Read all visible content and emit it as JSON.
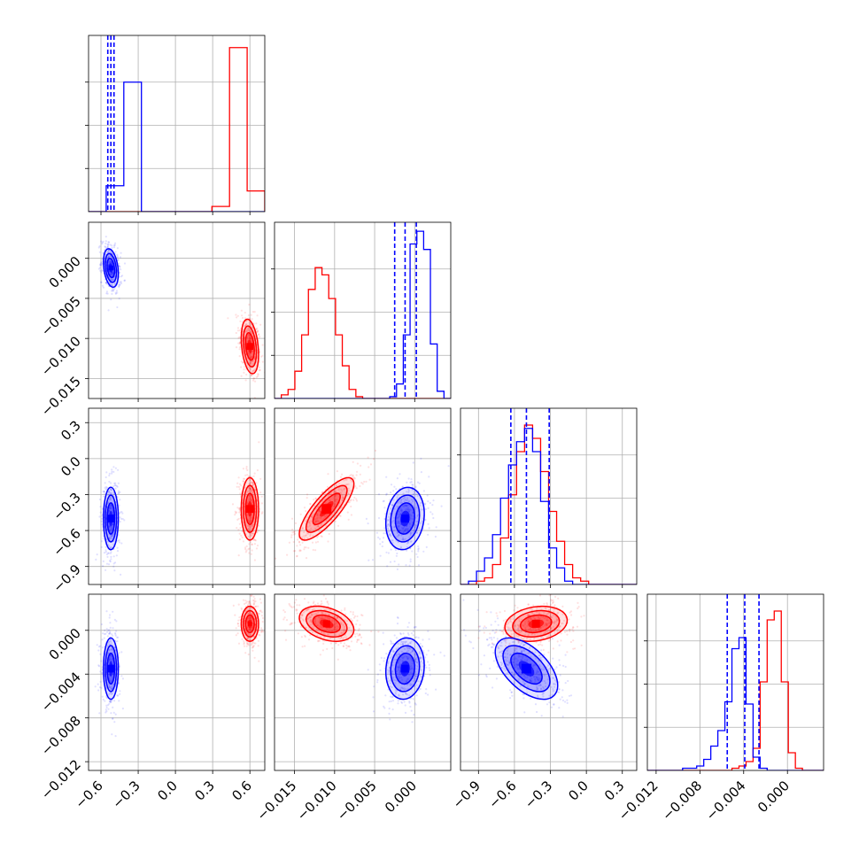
{
  "chart_data": {
    "type": "corner",
    "grid": true,
    "colors": {
      "blue": "#0000ff",
      "red": "#ff0000",
      "grid": "#b0b0b0"
    },
    "parameters": [
      {
        "range": [
          -0.7,
          0.72
        ],
        "ticks": [
          -0.6,
          -0.3,
          0.0,
          0.3,
          0.6
        ],
        "tick_labels": [
          "−0.6",
          "−0.3",
          "0.0",
          "0.3",
          "0.6"
        ]
      },
      {
        "range": [
          -0.0175,
          0.0045
        ],
        "ticks": [
          -0.015,
          -0.01,
          -0.005,
          0.0
        ],
        "tick_labels": [
          "−0.015",
          "−0.010",
          "−0.005",
          "0.000"
        ]
      },
      {
        "range": [
          -1.05,
          0.42
        ],
        "ticks": [
          -0.9,
          -0.6,
          -0.3,
          0.0,
          0.3
        ],
        "tick_labels": [
          "−0.9",
          "−0.6",
          "−0.3",
          "0.0",
          "0.3"
        ]
      },
      {
        "range": [
          -0.0128,
          0.0033
        ],
        "ticks": [
          -0.012,
          -0.008,
          -0.004,
          0.0
        ],
        "tick_labels": [
          "−0.012",
          "−0.008",
          "−0.004",
          "0.000"
        ]
      }
    ],
    "blue": {
      "means": [
        -0.52,
        -0.0012,
        -0.5,
        -0.0035
      ],
      "stds": [
        0.03,
        0.0012,
        0.13,
        0.0014
      ],
      "quantiles": [
        [
          -0.545,
          -0.52,
          -0.495
        ],
        [
          -0.0025,
          -0.0012,
          0.0002
        ],
        [
          -0.63,
          -0.5,
          -0.31
        ],
        [
          -0.0055,
          -0.0039,
          -0.0026
        ]
      ]
    },
    "red": {
      "means": [
        0.6,
        -0.011,
        -0.42,
        0.0006
      ],
      "stds": [
        0.035,
        0.0017,
        0.13,
        0.0008
      ]
    },
    "histograms": [
      {
        "blue_counts": [
          0,
          15,
          75,
          0,
          0,
          0,
          0,
          0,
          0,
          0
        ],
        "red_counts": [
          0,
          0,
          0,
          0,
          0,
          0,
          0,
          3,
          95,
          12
        ],
        "ymax": 100
      },
      {
        "blue_counts": [
          0,
          0,
          0,
          0,
          0,
          0,
          0,
          0,
          0,
          0,
          0,
          0,
          0,
          0,
          0,
          0,
          0,
          1,
          8,
          35,
          85,
          92,
          82,
          30,
          4,
          0
        ],
        "red_counts": [
          0,
          2,
          5,
          15,
          35,
          60,
          72,
          68,
          55,
          35,
          18,
          5,
          1,
          0,
          0,
          0,
          0,
          0,
          0,
          0,
          0,
          0,
          0,
          0,
          0,
          0
        ],
        "ymax": 95
      },
      {
        "blue_counts": [
          0,
          1,
          4,
          8,
          15,
          26,
          36,
          43,
          47,
          40,
          25,
          11,
          5,
          1,
          0,
          0,
          0,
          0,
          0,
          0,
          0,
          0
        ],
        "red_counts": [
          0,
          0,
          1,
          2,
          6,
          14,
          27,
          40,
          48,
          44,
          34,
          22,
          13,
          6,
          2,
          1,
          0,
          0,
          0,
          0,
          0,
          0
        ],
        "ymax": 52
      },
      {
        "blue_counts": [
          0,
          0,
          0,
          0,
          0,
          1,
          1,
          2,
          5,
          11,
          18,
          31,
          55,
          60,
          30,
          6,
          1,
          0,
          0,
          0,
          0,
          0,
          0,
          0,
          0
        ],
        "red_counts": [
          0,
          0,
          0,
          0,
          0,
          0,
          0,
          0,
          0,
          0,
          0,
          0,
          1,
          2,
          4,
          10,
          40,
          68,
          72,
          40,
          8,
          1,
          0,
          0,
          0
        ],
        "ymax": 78
      }
    ],
    "correlations": {
      "blue": {
        "1,0": -0.3,
        "2,0": 0.0,
        "2,1": 0.15,
        "3,0": 0.0,
        "3,1": 0.1,
        "3,2": -0.55
      },
      "red": {
        "1,0": -0.3,
        "2,0": 0.0,
        "2,1": 0.8,
        "3,0": 0.0,
        "3,1": -0.35,
        "3,2": 0.2
      }
    }
  }
}
